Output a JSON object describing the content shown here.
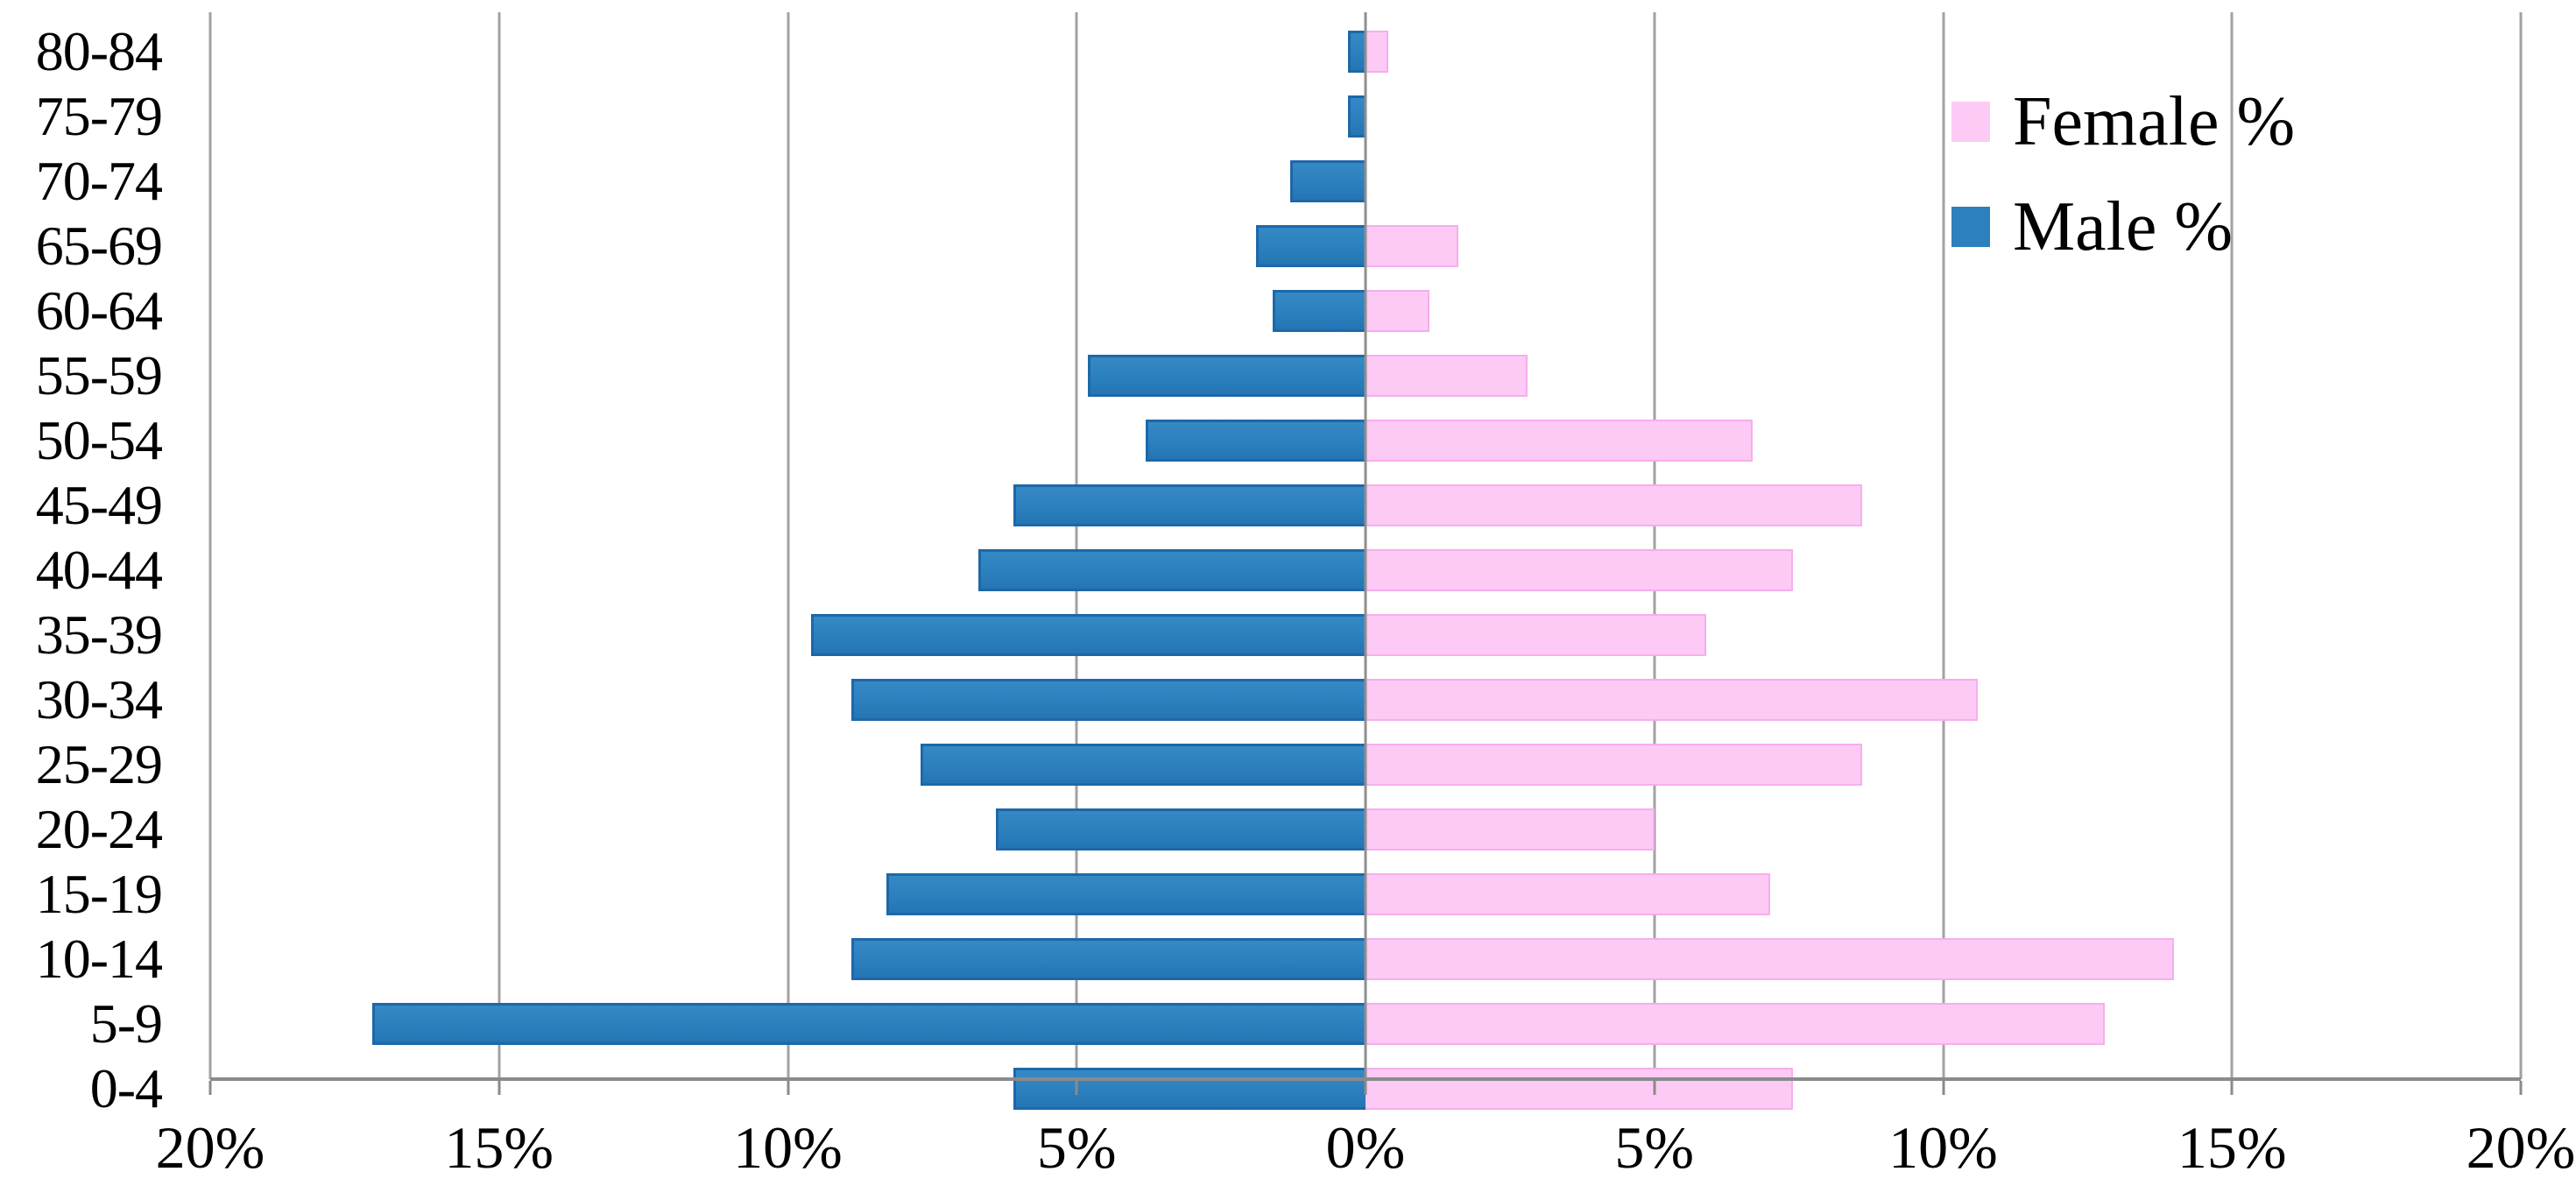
{
  "chart_data": {
    "type": "bar",
    "subtype": "population_pyramid",
    "orientation": "horizontal",
    "title": "",
    "categories": [
      "80-84",
      "75-79",
      "70-74",
      "65-69",
      "60-64",
      "55-59",
      "50-54",
      "45-49",
      "40-44",
      "35-39",
      "30-34",
      "25-29",
      "20-24",
      "15-19",
      "10-14",
      "5-9",
      "0-4"
    ],
    "series": [
      {
        "name": "Female %",
        "side": "right",
        "color": "#fccaf5",
        "border_color": "#f6aeeb",
        "values": [
          0.4,
          0.0,
          0.0,
          1.6,
          1.1,
          2.8,
          6.7,
          8.6,
          7.4,
          5.9,
          10.6,
          8.6,
          5.0,
          7.0,
          14.0,
          12.8,
          7.4
        ]
      },
      {
        "name": "Male %",
        "side": "left",
        "color": "#2b80bd",
        "border_color": "#1d68a9",
        "values": [
          0.3,
          0.3,
          1.3,
          1.9,
          1.6,
          4.8,
          3.8,
          6.1,
          6.7,
          9.6,
          8.9,
          7.7,
          6.4,
          8.3,
          8.9,
          17.2,
          6.1
        ]
      }
    ],
    "x_axis": {
      "min": -20,
      "max": 20,
      "tick_step_percent": 5,
      "tick_labels": [
        "20%",
        "15%",
        "10%",
        "5%",
        "0%",
        "5%",
        "10%",
        "15%",
        "20%"
      ],
      "unit": "%"
    },
    "y_axis": {
      "categories_order": "oldest-at-top"
    },
    "grid": {
      "vertical": true,
      "color": "#a2a2a2",
      "axis_line_color": "#8a8a8a"
    },
    "legend_position": "top-right"
  },
  "legend": {
    "items": [
      {
        "label": "Female %",
        "swatch_color": "#fccaf5"
      },
      {
        "label": "Male %",
        "swatch_color": "#2b80bd"
      }
    ]
  }
}
